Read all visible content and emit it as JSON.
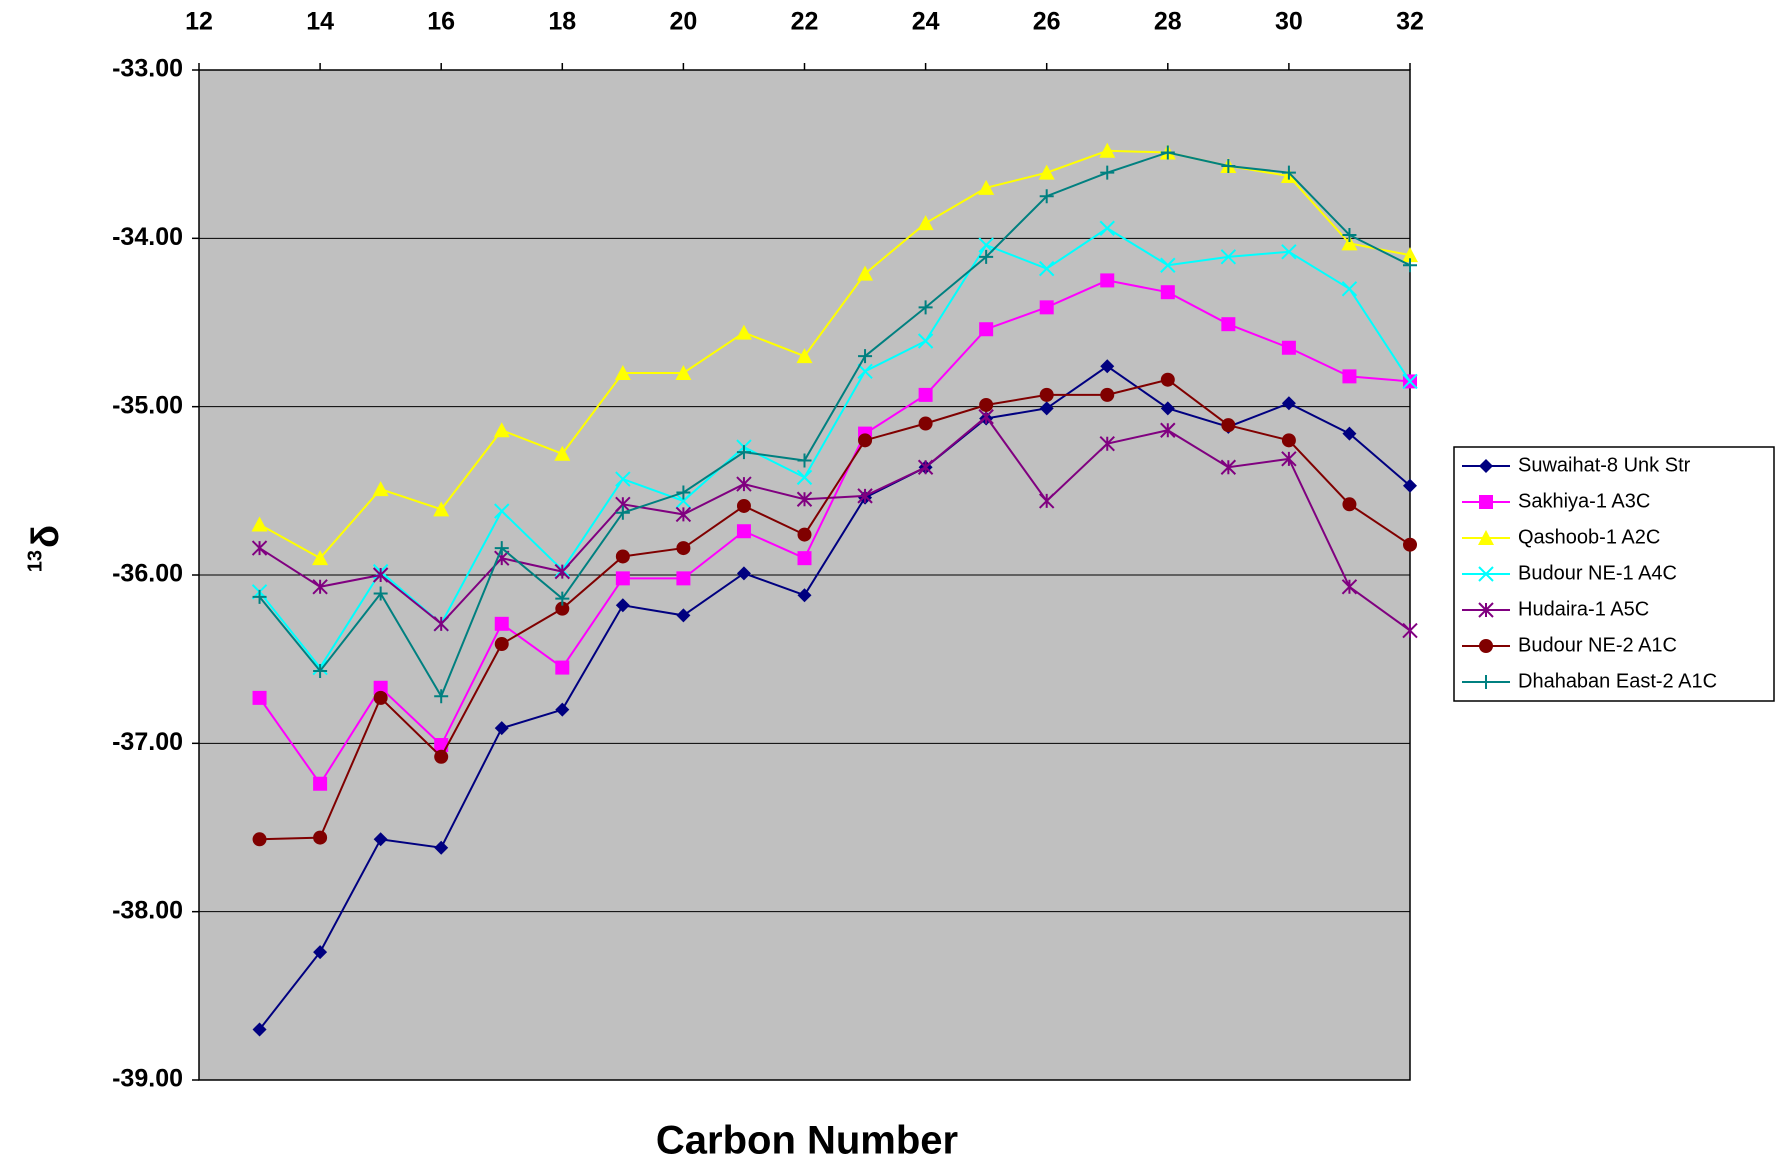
{
  "chart_data": {
    "type": "line",
    "x_label": "Carbon Number",
    "y_label_sup": "13",
    "y_label": "δ",
    "x": [
      13,
      14,
      15,
      16,
      17,
      18,
      19,
      20,
      21,
      22,
      23,
      24,
      25,
      26,
      27,
      28,
      29,
      30,
      31,
      32
    ],
    "xlim": [
      12,
      32
    ],
    "xticks": [
      12,
      14,
      16,
      18,
      20,
      22,
      24,
      26,
      28,
      30,
      32
    ],
    "ylim": [
      -39,
      -33
    ],
    "yticks": [
      {
        "value": -39,
        "label": "-39.00"
      },
      {
        "value": -38,
        "label": "-38.00"
      },
      {
        "value": -37,
        "label": "-37.00"
      },
      {
        "value": -36,
        "label": "-36.00"
      },
      {
        "value": -35,
        "label": "-35.00"
      },
      {
        "value": -34,
        "label": "-34.00"
      },
      {
        "value": -33,
        "label": "-33.00"
      }
    ],
    "grid": true,
    "plot_background": "#c0c0c0",
    "legend": "right",
    "series": [
      {
        "name": "Suwaihat-8 Unk Str",
        "color": "#000080",
        "marker": "diamond",
        "values": [
          -38.7,
          -38.24,
          -37.57,
          -37.62,
          -36.91,
          -36.8,
          -36.18,
          -36.24,
          -35.99,
          -36.12,
          -35.54,
          -35.36,
          -35.07,
          -35.01,
          -34.76,
          -35.01,
          -35.12,
          -34.98,
          -35.16,
          -35.47
        ]
      },
      {
        "name": "Sakhiya-1 A3C",
        "color": "#ff00ff",
        "marker": "square",
        "values": [
          -36.73,
          -37.24,
          -36.67,
          -37.01,
          -36.29,
          -36.55,
          -36.02,
          -36.02,
          -35.74,
          -35.9,
          -35.16,
          -34.93,
          -34.54,
          -34.41,
          -34.25,
          -34.32,
          -34.51,
          -34.65,
          -34.82,
          -34.85
        ]
      },
      {
        "name": "Qashoob-1 A2C",
        "color": "#ffff00",
        "marker": "triangle",
        "values": [
          -35.7,
          -35.9,
          -35.49,
          -35.61,
          -35.14,
          -35.28,
          -34.8,
          -34.8,
          -34.56,
          -34.7,
          -34.21,
          -33.91,
          -33.7,
          -33.61,
          -33.48,
          -33.49,
          -33.57,
          -33.63,
          -34.03,
          -34.1
        ]
      },
      {
        "name": "Budour NE-1 A4C",
        "color": "#00ffff",
        "marker": "x",
        "values": [
          -36.1,
          -36.55,
          -35.98,
          -36.29,
          -35.62,
          -35.97,
          -35.43,
          -35.56,
          -35.24,
          -35.42,
          -34.79,
          -34.61,
          -34.04,
          -34.18,
          -33.94,
          -34.16,
          -34.11,
          -34.08,
          -34.3,
          -34.85
        ]
      },
      {
        "name": "Hudaira-1 A5C",
        "color": "#800080",
        "marker": "asterisk",
        "values": [
          -35.84,
          -36.07,
          -36.0,
          -36.29,
          -35.9,
          -35.98,
          -35.58,
          -35.64,
          -35.46,
          -35.55,
          -35.53,
          -35.36,
          -35.06,
          -35.56,
          -35.22,
          -35.14,
          -35.36,
          -35.31,
          -36.07,
          -36.33
        ]
      },
      {
        "name": "Budour NE-2 A1C",
        "color": "#800000",
        "marker": "circle",
        "values": [
          -37.57,
          -37.56,
          -36.73,
          -37.08,
          -36.41,
          -36.2,
          -35.89,
          -35.84,
          -35.59,
          -35.76,
          -35.2,
          -35.1,
          -34.99,
          -34.93,
          -34.93,
          -34.84,
          -35.11,
          -35.2,
          -35.58,
          -35.82
        ]
      },
      {
        "name": "Dhahaban East-2 A1C",
        "color": "#008080",
        "marker": "plus",
        "values": [
          -36.13,
          -36.57,
          -36.11,
          -36.72,
          -35.84,
          -36.14,
          -35.63,
          -35.51,
          -35.27,
          -35.32,
          -34.7,
          -34.41,
          -34.11,
          -33.75,
          -33.61,
          -33.49,
          -33.57,
          -33.61,
          -33.98,
          -34.16
        ]
      }
    ]
  }
}
